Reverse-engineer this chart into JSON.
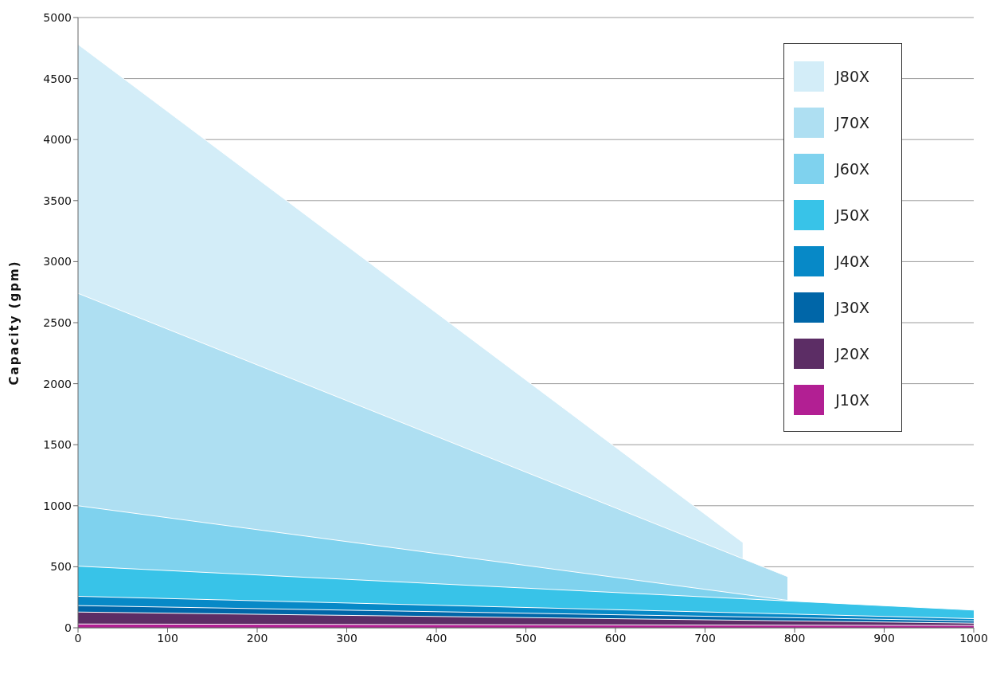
{
  "chart_data": {
    "type": "area",
    "ylabel": "Capacity (gpm)",
    "xlim": [
      0,
      1000
    ],
    "xticks": [
      0,
      100,
      200,
      300,
      400,
      500,
      600,
      700,
      800,
      900,
      1000
    ],
    "ylim": [
      0,
      5000
    ],
    "yticks": [
      0,
      500,
      1000,
      1500,
      2000,
      2500,
      3000,
      3500,
      4000,
      4500,
      5000
    ],
    "grid": "y",
    "legend": "top right",
    "series": [
      {
        "name": "J80X",
        "color": "#d3edf8",
        "x": [
          0,
          742
        ],
        "values": [
          4780,
          700
        ]
      },
      {
        "name": "J70X",
        "color": "#aedff2",
        "x": [
          0,
          792
        ],
        "values": [
          2740,
          420
        ]
      },
      {
        "name": "J60X",
        "color": "#7fd2ee",
        "x": [
          0,
          792
        ],
        "values": [
          1000,
          225
        ]
      },
      {
        "name": "J50X",
        "color": "#38c3e8",
        "x": [
          0,
          1000
        ],
        "values": [
          505,
          145
        ]
      },
      {
        "name": "J40X",
        "color": "#0789c7",
        "x": [
          0,
          1000
        ],
        "values": [
          258,
          75
        ]
      },
      {
        "name": "J30X",
        "color": "#0066a8",
        "x": [
          0,
          1000
        ],
        "values": [
          182,
          57
        ]
      },
      {
        "name": "J20X",
        "color": "#5c2d65",
        "x": [
          0,
          1000
        ],
        "values": [
          129,
          38
        ]
      },
      {
        "name": "J10X",
        "color": "#b21f93",
        "x": [
          0,
          1000
        ],
        "values": [
          31,
          19
        ]
      }
    ]
  }
}
